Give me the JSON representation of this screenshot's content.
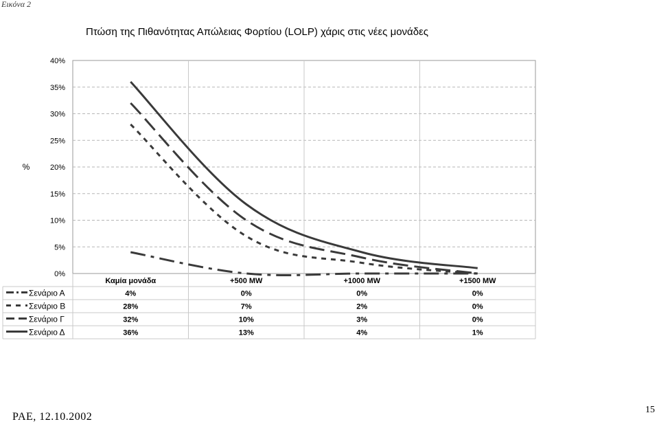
{
  "figure_label": "Εικόνα 2",
  "footer": {
    "left": "ΡΑΕ, 12.10.2002",
    "page_number": "15"
  },
  "chart_data": {
    "type": "line",
    "title": "Πτώση της Πιθανότητας Απώλειας Φορτίου (LOLP) χάρις στις νέες μονάδες",
    "xlabel": "",
    "ylabel": "%",
    "categories": [
      "Καμία μονάδα",
      "+500 MW",
      "+1000 MW",
      "+1500 MW"
    ],
    "y_ticks": [
      "0%",
      "5%",
      "10%",
      "15%",
      "20%",
      "25%",
      "30%",
      "35%",
      "40%"
    ],
    "ylim": [
      0,
      40
    ],
    "grid": true,
    "legend": "data-table-left",
    "series": [
      {
        "name": "Σενάριο Α",
        "values": [
          4,
          0,
          0,
          0
        ],
        "labels": [
          "4%",
          "0%",
          "0%",
          "0%"
        ],
        "dash": "dashdot"
      },
      {
        "name": "Σενάριο Β",
        "values": [
          28,
          7,
          2,
          0
        ],
        "labels": [
          "28%",
          "7%",
          "2%",
          "0%"
        ],
        "dash": "dotted"
      },
      {
        "name": "Σενάριο Γ",
        "values": [
          32,
          10,
          3,
          0
        ],
        "labels": [
          "32%",
          "10%",
          "3%",
          "0%"
        ],
        "dash": "dashed"
      },
      {
        "name": "Σενάριο Δ",
        "values": [
          36,
          13,
          4,
          1
        ],
        "labels": [
          "36%",
          "13%",
          "4%",
          "1%"
        ],
        "dash": "solid"
      }
    ]
  }
}
